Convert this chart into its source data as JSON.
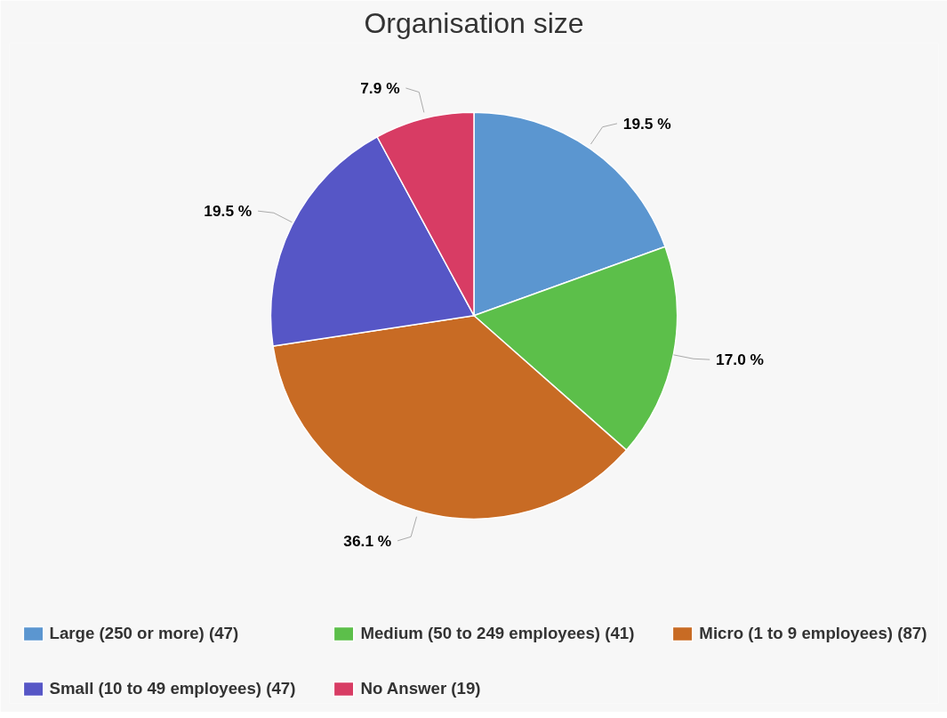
{
  "chart_data": {
    "type": "pie",
    "title": "Organisation size",
    "categories": [
      "Large (250 or more) (47)",
      "Medium (50 to 249 employees) (41)",
      "Micro (1 to 9 employees) (87)",
      "Small (10 to 49 employees) (47)",
      "No Answer (19)"
    ],
    "values": [
      19.5,
      17.0,
      36.1,
      19.5,
      7.9
    ],
    "value_labels": [
      "19.5 %",
      "17.0 %",
      "36.1 %",
      "19.5 %",
      "7.9 %"
    ],
    "colors": [
      "#5b96d0",
      "#5cbf4a",
      "#c86b24",
      "#5656c6",
      "#d83c64"
    ],
    "legend": "bottom"
  }
}
